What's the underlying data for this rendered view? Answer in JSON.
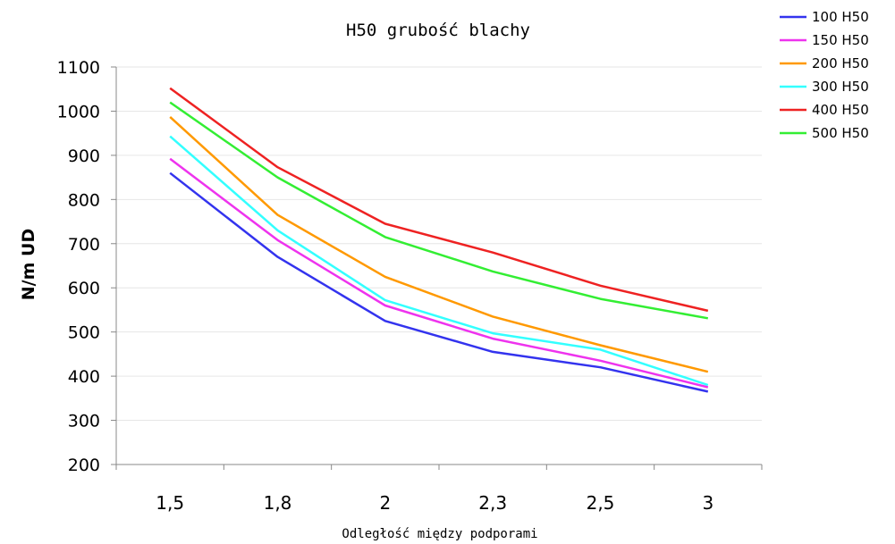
{
  "chart_data": {
    "type": "line",
    "title": "H50 grubość blachy",
    "xlabel": "Odległość między podporami",
    "ylabel": "N/m UD",
    "categories": [
      "1,5",
      "1,8",
      "2",
      "2,3",
      "2,5",
      "3"
    ],
    "ylim": [
      200,
      1100
    ],
    "yticks": [
      200,
      300,
      400,
      500,
      600,
      700,
      800,
      900,
      1000,
      1100
    ],
    "grid": true,
    "legend": "top-right",
    "series": [
      {
        "name": "100 H50",
        "color": "#3333ee",
        "values": [
          860,
          670,
          525,
          455,
          420,
          365
        ]
      },
      {
        "name": "150 H50",
        "color": "#ee33ee",
        "values": [
          892,
          708,
          560,
          485,
          435,
          375
        ]
      },
      {
        "name": "200 H50",
        "color": "#ff9900",
        "values": [
          987,
          765,
          625,
          535,
          470,
          410
        ]
      },
      {
        "name": "300 H50",
        "color": "#33ffff",
        "values": [
          943,
          730,
          572,
          497,
          460,
          380
        ]
      },
      {
        "name": "400 H50",
        "color": "#ee2222",
        "values": [
          1052,
          873,
          745,
          680,
          605,
          548
        ]
      },
      {
        "name": "500 H50",
        "color": "#33ee33",
        "values": [
          1020,
          850,
          715,
          637,
          575,
          531
        ]
      }
    ]
  }
}
